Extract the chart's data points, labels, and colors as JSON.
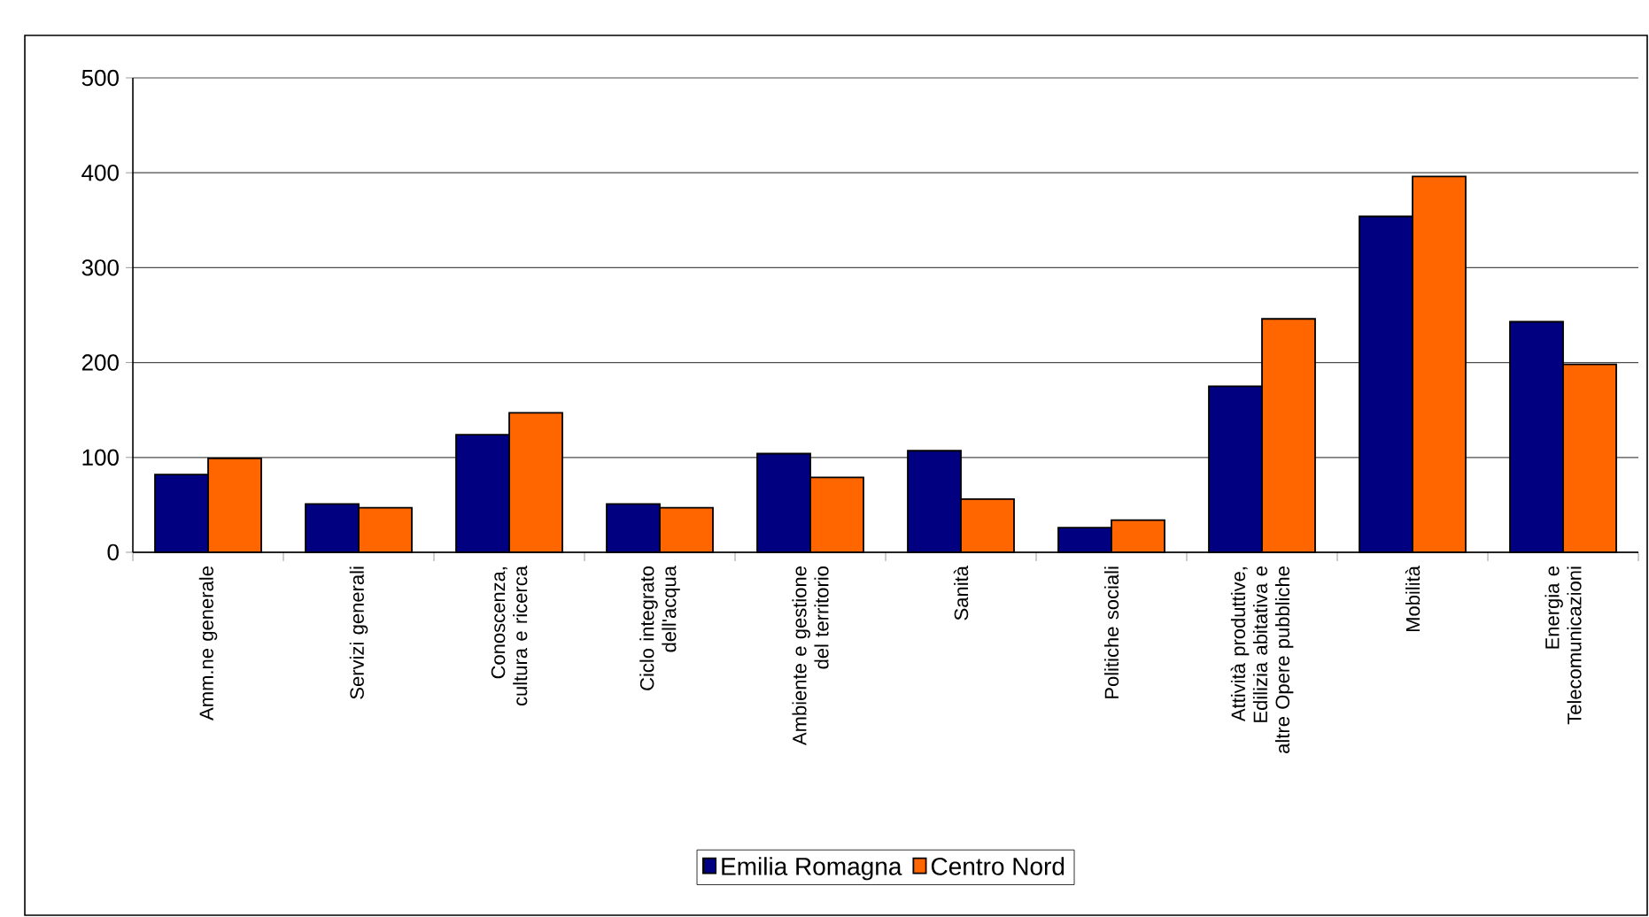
{
  "chart_data": {
    "type": "bar",
    "categories": [
      "Amm.ne generale",
      "Servizi generali",
      "Conoscenza, cultura e ricerca",
      "Ciclo integrato dell'acqua",
      "Ambiente e gestione del territorio",
      "Sanità",
      "Politiche sociali",
      "Attività produttive, Edilizia abitativa e altre Opere pubbliche",
      "Mobilità",
      "Energia e Telecomunicazioni"
    ],
    "series": [
      {
        "name": "Emilia Romagna",
        "color": "#000080",
        "values": [
          82,
          51,
          124,
          51,
          104,
          107,
          26,
          175,
          354,
          243
        ]
      },
      {
        "name": "Centro Nord",
        "color": "#ff6600",
        "values": [
          99,
          47,
          147,
          47,
          79,
          56,
          34,
          246,
          396,
          198
        ]
      }
    ],
    "ylim": [
      0,
      500
    ],
    "yticks": [
      0,
      100,
      200,
      300,
      400,
      500
    ],
    "grid": "y",
    "legend": "bottom"
  }
}
